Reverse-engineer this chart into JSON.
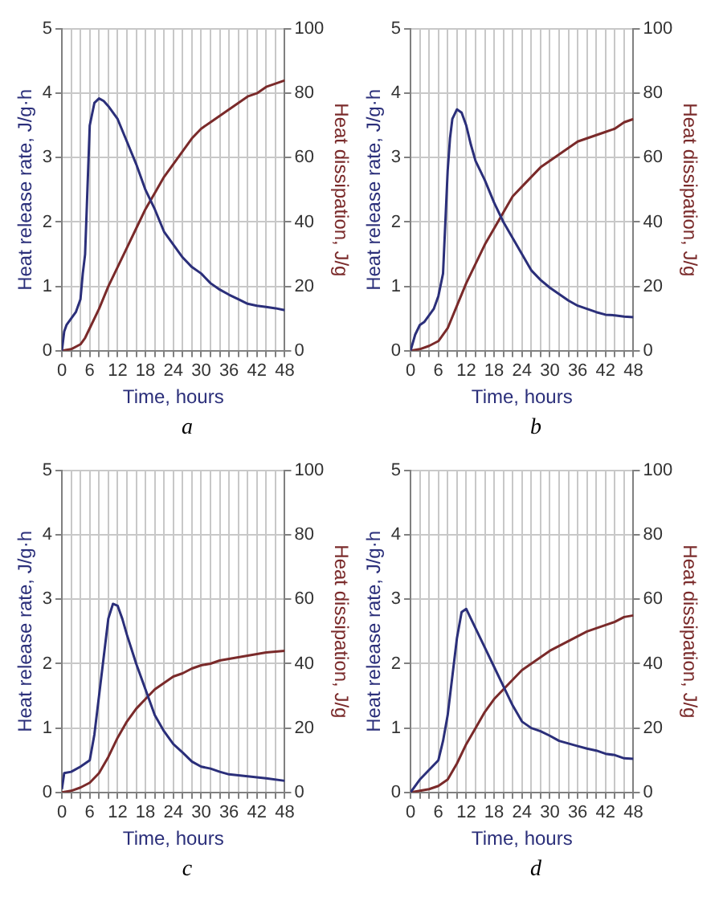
{
  "chart_data": [
    {
      "type": "line",
      "xlabel": "Time, hours",
      "ylabel": "Heat release rate, J/g·h",
      "y2label": "Heat dissipation, J/g",
      "annotations": [
        "a"
      ],
      "xlim": [
        0,
        48
      ],
      "ylim": [
        0,
        5
      ],
      "y2lim": [
        0,
        100
      ],
      "grid": true,
      "marker": "none",
      "line_style": "solid",
      "xticks": [
        0,
        {
          "value": 2,
          "label": null
        },
        {
          "value": 4,
          "label": null
        },
        6,
        {
          "value": 8,
          "label": null
        },
        {
          "value": 10,
          "label": null
        },
        12,
        {
          "value": 14,
          "label": null
        },
        {
          "value": 16,
          "label": null
        },
        18,
        {
          "value": 20,
          "label": null
        },
        {
          "value": 22,
          "label": null
        },
        24,
        {
          "value": 26,
          "label": null
        },
        {
          "value": 28,
          "label": null
        },
        30,
        {
          "value": 32,
          "label": null
        },
        {
          "value": 34,
          "label": null
        },
        36,
        {
          "value": 38,
          "label": null
        },
        {
          "value": 40,
          "label": null
        },
        42,
        {
          "value": 44,
          "label": null
        },
        {
          "value": 46,
          "label": null
        },
        48
      ],
      "yticks": [
        0,
        1,
        2,
        3,
        4,
        5
      ],
      "y2ticks": [
        0,
        20,
        40,
        60,
        80,
        100
      ],
      "series": [
        {
          "color": "#2b2f7a",
          "x": [
            0,
            0.5,
            1,
            2,
            3,
            4,
            4.5,
            5,
            5.5,
            6,
            7,
            8,
            9,
            10,
            12,
            14,
            16,
            18,
            20,
            22,
            24,
            26,
            28,
            30,
            32,
            34,
            36,
            38,
            40,
            42,
            44,
            46,
            48
          ],
          "values": [
            0,
            0.3,
            0.4,
            0.5,
            0.6,
            0.8,
            1.2,
            1.5,
            2.5,
            3.5,
            3.85,
            3.92,
            3.88,
            3.8,
            3.6,
            3.25,
            2.9,
            2.5,
            2.2,
            1.85,
            1.65,
            1.45,
            1.3,
            1.2,
            1.05,
            0.95,
            0.87,
            0.8,
            0.73,
            0.7,
            0.68,
            0.66,
            0.63
          ]
        },
        {
          "color": "#7a2a2a",
          "axis": "y2",
          "x": [
            0,
            2,
            4,
            5,
            6,
            8,
            10,
            12,
            14,
            16,
            18,
            20,
            22,
            24,
            26,
            28,
            30,
            32,
            34,
            36,
            38,
            40,
            42,
            44,
            46,
            48
          ],
          "values": [
            0,
            0.5,
            2,
            4,
            7,
            13,
            20,
            26,
            32,
            38,
            44,
            49,
            54,
            58,
            62,
            66,
            69,
            71,
            73,
            75,
            77,
            79,
            80,
            82,
            83,
            84
          ]
        }
      ]
    },
    {
      "type": "line",
      "xlabel": "Time, hours",
      "ylabel": "Heat release rate, J/g·h",
      "y2label": "Heat dissipation, J/g",
      "annotations": [
        "b"
      ],
      "xlim": [
        0,
        48
      ],
      "ylim": [
        0,
        5
      ],
      "y2lim": [
        0,
        100
      ],
      "grid": true,
      "marker": "none",
      "line_style": "solid",
      "xticks": [
        0,
        {
          "value": 2,
          "label": null
        },
        {
          "value": 4,
          "label": null
        },
        6,
        {
          "value": 8,
          "label": null
        },
        {
          "value": 10,
          "label": null
        },
        12,
        {
          "value": 14,
          "label": null
        },
        {
          "value": 16,
          "label": null
        },
        18,
        {
          "value": 20,
          "label": null
        },
        {
          "value": 22,
          "label": null
        },
        24,
        {
          "value": 26,
          "label": null
        },
        {
          "value": 28,
          "label": null
        },
        30,
        {
          "value": 32,
          "label": null
        },
        {
          "value": 34,
          "label": null
        },
        36,
        {
          "value": 38,
          "label": null
        },
        {
          "value": 40,
          "label": null
        },
        42,
        {
          "value": 44,
          "label": null
        },
        {
          "value": 46,
          "label": null
        },
        48
      ],
      "yticks": [
        0,
        1,
        2,
        3,
        4,
        5
      ],
      "y2ticks": [
        0,
        20,
        40,
        60,
        80,
        100
      ],
      "series": [
        {
          "color": "#2b2f7a",
          "x": [
            0,
            1,
            2,
            3,
            4,
            5,
            6,
            7,
            7.5,
            8,
            8.5,
            9,
            10,
            11,
            12,
            13,
            14,
            16,
            18,
            20,
            22,
            24,
            26,
            28,
            30,
            32,
            34,
            36,
            38,
            40,
            42,
            44,
            46,
            48
          ],
          "values": [
            0,
            0.25,
            0.4,
            0.45,
            0.55,
            0.65,
            0.85,
            1.2,
            2,
            2.8,
            3.3,
            3.6,
            3.75,
            3.7,
            3.5,
            3.2,
            2.95,
            2.65,
            2.3,
            2,
            1.75,
            1.5,
            1.25,
            1.1,
            0.98,
            0.88,
            0.78,
            0.7,
            0.65,
            0.6,
            0.56,
            0.55,
            0.53,
            0.52
          ]
        },
        {
          "color": "#7a2a2a",
          "axis": "y2",
          "x": [
            0,
            2,
            4,
            6,
            8,
            10,
            12,
            14,
            16,
            18,
            20,
            22,
            24,
            26,
            28,
            30,
            32,
            34,
            36,
            38,
            40,
            42,
            44,
            46,
            48
          ],
          "values": [
            0,
            0.5,
            1.5,
            3,
            7,
            14,
            21,
            27,
            33,
            38,
            43,
            48,
            51,
            54,
            57,
            59,
            61,
            63,
            65,
            66,
            67,
            68,
            69,
            71,
            72
          ]
        }
      ]
    },
    {
      "type": "line",
      "xlabel": "Time, hours",
      "ylabel": "Heat release rate, J/g·h",
      "y2label": "Heat dissipation, J/g",
      "annotations": [
        "c"
      ],
      "xlim": [
        0,
        48
      ],
      "ylim": [
        0,
        5
      ],
      "y2lim": [
        0,
        100
      ],
      "grid": true,
      "marker": "none",
      "line_style": "solid",
      "xticks": [
        0,
        {
          "value": 2,
          "label": null
        },
        {
          "value": 4,
          "label": null
        },
        6,
        {
          "value": 8,
          "label": null
        },
        {
          "value": 10,
          "label": null
        },
        12,
        {
          "value": 14,
          "label": null
        },
        {
          "value": 16,
          "label": null
        },
        18,
        {
          "value": 20,
          "label": null
        },
        {
          "value": 22,
          "label": null
        },
        24,
        {
          "value": 26,
          "label": null
        },
        {
          "value": 28,
          "label": null
        },
        30,
        {
          "value": 32,
          "label": null
        },
        {
          "value": 34,
          "label": null
        },
        36,
        {
          "value": 38,
          "label": null
        },
        {
          "value": 40,
          "label": null
        },
        42,
        {
          "value": 44,
          "label": null
        },
        {
          "value": 46,
          "label": null
        },
        48
      ],
      "yticks": [
        0,
        1,
        2,
        3,
        4,
        5
      ],
      "y2ticks": [
        0,
        20,
        40,
        60,
        80,
        100
      ],
      "series": [
        {
          "color": "#2b2f7a",
          "x": [
            0,
            0.5,
            2,
            4,
            6,
            7,
            8,
            9,
            10,
            11,
            12,
            13,
            14,
            16,
            18,
            20,
            22,
            24,
            26,
            28,
            30,
            32,
            34,
            36,
            40,
            44,
            48
          ],
          "values": [
            0.05,
            0.3,
            0.32,
            0.4,
            0.5,
            0.9,
            1.5,
            2.1,
            2.7,
            2.93,
            2.9,
            2.7,
            2.45,
            2,
            1.6,
            1.2,
            0.95,
            0.75,
            0.62,
            0.48,
            0.4,
            0.37,
            0.32,
            0.28,
            0.25,
            0.22,
            0.18
          ]
        },
        {
          "color": "#7a2a2a",
          "axis": "y2",
          "x": [
            0,
            2,
            4,
            6,
            8,
            10,
            12,
            14,
            16,
            18,
            20,
            22,
            24,
            26,
            28,
            30,
            32,
            34,
            36,
            40,
            44,
            48
          ],
          "values": [
            0,
            0.5,
            1.5,
            3,
            6,
            11,
            17,
            22,
            26,
            29,
            32,
            34,
            36,
            37,
            38.5,
            39.5,
            40,
            41,
            41.5,
            42.5,
            43.5,
            44
          ]
        }
      ]
    },
    {
      "type": "line",
      "xlabel": "Time, hours",
      "ylabel": "Heat release rate, J/g·h",
      "y2label": "Heat dissipation, J/g",
      "annotations": [
        "d"
      ],
      "xlim": [
        0,
        48
      ],
      "ylim": [
        0,
        5
      ],
      "y2lim": [
        0,
        100
      ],
      "grid": true,
      "marker": "none",
      "line_style": "solid",
      "xticks": [
        0,
        {
          "value": 2,
          "label": null
        },
        {
          "value": 4,
          "label": null
        },
        6,
        {
          "value": 8,
          "label": null
        },
        {
          "value": 10,
          "label": null
        },
        12,
        {
          "value": 14,
          "label": null
        },
        {
          "value": 16,
          "label": null
        },
        18,
        {
          "value": 20,
          "label": null
        },
        {
          "value": 22,
          "label": null
        },
        24,
        {
          "value": 26,
          "label": null
        },
        {
          "value": 28,
          "label": null
        },
        30,
        {
          "value": 32,
          "label": null
        },
        {
          "value": 34,
          "label": null
        },
        36,
        {
          "value": 38,
          "label": null
        },
        {
          "value": 40,
          "label": null
        },
        42,
        {
          "value": 44,
          "label": null
        },
        {
          "value": 46,
          "label": null
        },
        48
      ],
      "yticks": [
        0,
        1,
        2,
        3,
        4,
        5
      ],
      "y2ticks": [
        0,
        20,
        40,
        60,
        80,
        100
      ],
      "series": [
        {
          "color": "#2b2f7a",
          "x": [
            0,
            2,
            4,
            6,
            7,
            8,
            9,
            10,
            11,
            12,
            13,
            14,
            16,
            18,
            20,
            22,
            24,
            26,
            28,
            30,
            32,
            34,
            36,
            38,
            40,
            42,
            44,
            46,
            48
          ],
          "values": [
            0,
            0.2,
            0.35,
            0.5,
            0.8,
            1.2,
            1.8,
            2.4,
            2.8,
            2.85,
            2.7,
            2.55,
            2.25,
            1.95,
            1.65,
            1.35,
            1.1,
            1,
            0.95,
            0.88,
            0.8,
            0.76,
            0.72,
            0.68,
            0.65,
            0.6,
            0.58,
            0.53,
            0.52
          ]
        },
        {
          "color": "#7a2a2a",
          "axis": "y2",
          "x": [
            0,
            4,
            6,
            8,
            10,
            12,
            14,
            16,
            18,
            20,
            22,
            24,
            26,
            28,
            30,
            32,
            34,
            36,
            38,
            40,
            42,
            44,
            46,
            48
          ],
          "values": [
            0,
            1,
            2,
            4,
            9,
            15,
            20,
            25,
            29,
            32,
            35,
            38,
            40,
            42,
            44,
            45.5,
            47,
            48.5,
            50,
            51,
            52,
            53,
            54.5,
            55
          ]
        }
      ]
    }
  ]
}
